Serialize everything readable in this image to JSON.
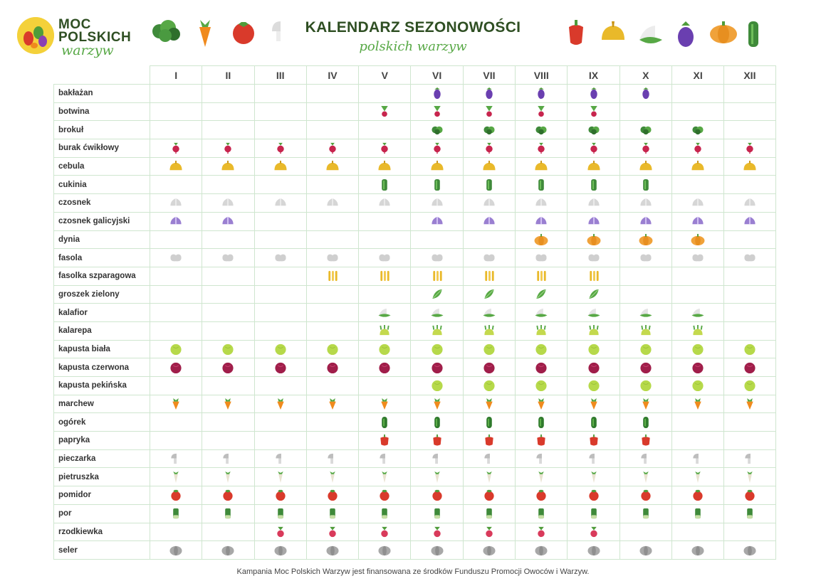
{
  "logo": {
    "line1": "MOC",
    "line2": "POLSKICH",
    "line3": "warzyw"
  },
  "title": "KALENDARZ SEZONOWOŚCI",
  "subtitle": "polskich warzyw",
  "header_icons_left": [
    "broccoli-icon",
    "carrot-icon",
    "tomato-icon",
    "mushroom-icon"
  ],
  "header_icons_right": [
    "pepper-icon",
    "onion-icon",
    "cauliflower-icon",
    "eggplant-icon",
    "pumpkin-icon",
    "zucchini-icon"
  ],
  "months": [
    "I",
    "II",
    "III",
    "IV",
    "V",
    "VI",
    "VII",
    "VIII",
    "IX",
    "X",
    "XI",
    "XII"
  ],
  "vegetables": [
    {
      "name": "bakłażan",
      "icon": "eggplant",
      "months": [
        6,
        7,
        8,
        9,
        10
      ]
    },
    {
      "name": "botwina",
      "icon": "beetleaf",
      "months": [
        5,
        6,
        7,
        8,
        9
      ]
    },
    {
      "name": "brokuł",
      "icon": "broccoli",
      "months": [
        6,
        7,
        8,
        9,
        10,
        11
      ]
    },
    {
      "name": "burak ćwikłowy",
      "icon": "beet",
      "months": [
        1,
        2,
        3,
        4,
        5,
        6,
        7,
        8,
        9,
        10,
        11,
        12
      ]
    },
    {
      "name": "cebula",
      "icon": "onion",
      "months": [
        1,
        2,
        3,
        4,
        5,
        6,
        7,
        8,
        9,
        10,
        11,
        12
      ]
    },
    {
      "name": "cukinia",
      "icon": "zucchini",
      "months": [
        5,
        6,
        7,
        8,
        9,
        10
      ]
    },
    {
      "name": "czosnek",
      "icon": "garlic",
      "months": [
        1,
        2,
        3,
        4,
        5,
        6,
        7,
        8,
        9,
        10,
        11,
        12
      ]
    },
    {
      "name": "czosnek galicyjski",
      "icon": "garlicviolet",
      "months": [
        1,
        2,
        6,
        7,
        8,
        9,
        10,
        11,
        12
      ]
    },
    {
      "name": "dynia",
      "icon": "pumpkin",
      "months": [
        8,
        9,
        10,
        11
      ]
    },
    {
      "name": "fasola",
      "icon": "bean",
      "months": [
        1,
        2,
        3,
        4,
        5,
        6,
        7,
        8,
        9,
        10,
        11,
        12
      ]
    },
    {
      "name": "fasolka szparagowa",
      "icon": "greenbeans",
      "months": [
        4,
        5,
        6,
        7,
        8,
        9
      ]
    },
    {
      "name": "groszek zielony",
      "icon": "peas",
      "months": [
        6,
        7,
        8,
        9
      ]
    },
    {
      "name": "kalafior",
      "icon": "cauliflower",
      "months": [
        5,
        6,
        7,
        8,
        9,
        10,
        11
      ]
    },
    {
      "name": "kalarepa",
      "icon": "kohlrabi",
      "months": [
        5,
        6,
        7,
        8,
        9,
        10,
        11
      ]
    },
    {
      "name": "kapusta biała",
      "icon": "cabbage",
      "months": [
        1,
        2,
        3,
        4,
        5,
        6,
        7,
        8,
        9,
        10,
        11,
        12
      ]
    },
    {
      "name": "kapusta czerwona",
      "icon": "redcabbage",
      "months": [
        1,
        2,
        3,
        4,
        5,
        6,
        7,
        8,
        9,
        10,
        11,
        12
      ]
    },
    {
      "name": "kapusta pekińska",
      "icon": "cabbage",
      "months": [
        6,
        7,
        8,
        9,
        10,
        11,
        12
      ]
    },
    {
      "name": "marchew",
      "icon": "carrot",
      "months": [
        1,
        2,
        3,
        4,
        5,
        6,
        7,
        8,
        9,
        10,
        11,
        12
      ]
    },
    {
      "name": "ogórek",
      "icon": "cucumber",
      "months": [
        5,
        6,
        7,
        8,
        9,
        10
      ]
    },
    {
      "name": "papryka",
      "icon": "pepper",
      "months": [
        5,
        6,
        7,
        8,
        9,
        10
      ]
    },
    {
      "name": "pieczarka",
      "icon": "mushroom",
      "months": [
        1,
        2,
        3,
        4,
        5,
        6,
        7,
        8,
        9,
        10,
        11,
        12
      ]
    },
    {
      "name": "pietruszka",
      "icon": "parsley",
      "months": [
        1,
        2,
        3,
        4,
        5,
        6,
        7,
        8,
        9,
        10,
        11,
        12
      ]
    },
    {
      "name": "pomidor",
      "icon": "tomato",
      "months": [
        1,
        2,
        3,
        4,
        5,
        6,
        7,
        8,
        9,
        10,
        11,
        12
      ]
    },
    {
      "name": "por",
      "icon": "leek",
      "months": [
        1,
        2,
        3,
        4,
        5,
        6,
        7,
        8,
        9,
        10,
        11,
        12
      ]
    },
    {
      "name": "rzodkiewka",
      "icon": "radish",
      "months": [
        3,
        4,
        5,
        6,
        7,
        8,
        9
      ]
    },
    {
      "name": "seler",
      "icon": "celery",
      "months": [
        1,
        2,
        3,
        4,
        5,
        6,
        7,
        8,
        9,
        10,
        11,
        12
      ]
    }
  ],
  "footer": "Kampania Moc Polskich Warzyw jest finansowana ze środków Funduszu Promocji Owoców i Warzyw."
}
